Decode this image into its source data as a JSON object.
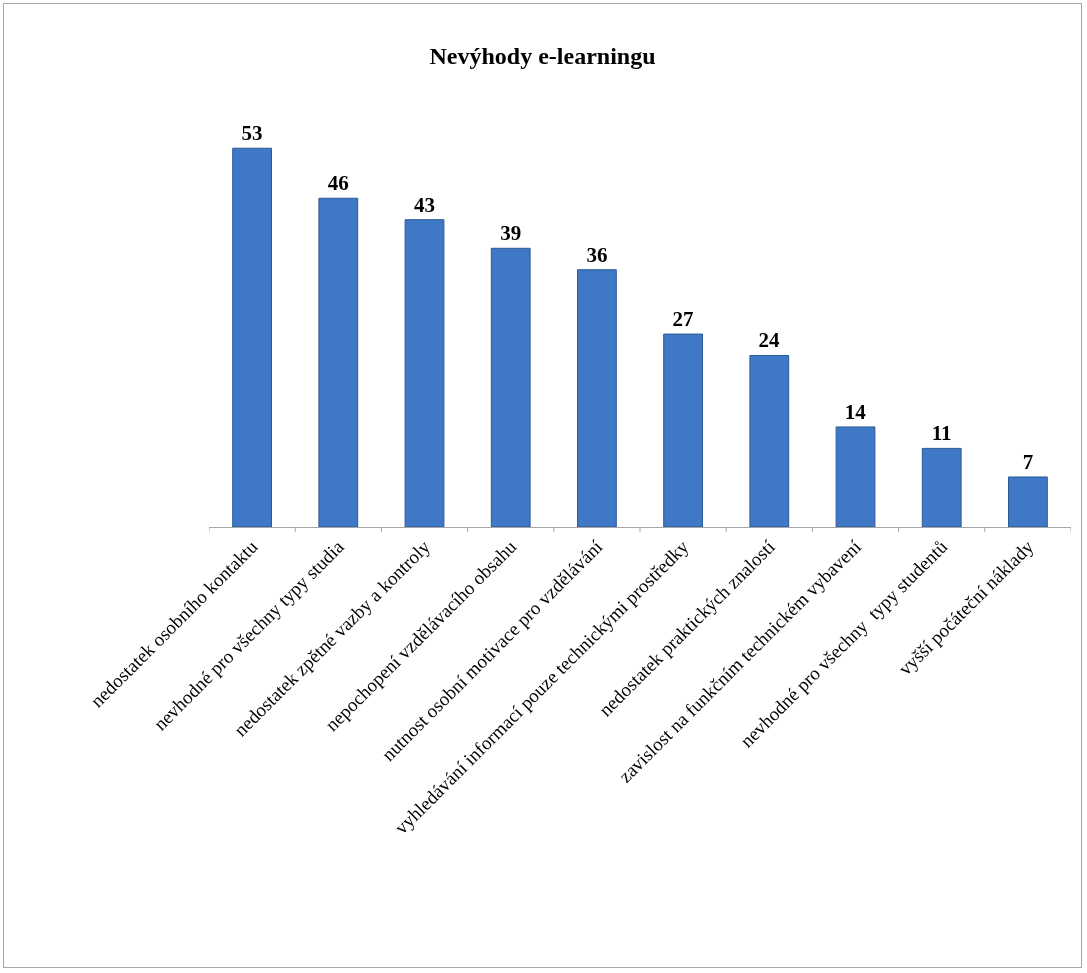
{
  "chart_data": {
    "type": "bar",
    "title": "Nevýhody e-learningu",
    "categories": [
      "nedostatek osobního kontaktu",
      "nevhodné pro všechny typy studia",
      "nedostatek zpětné vazby a kontroly",
      "nepochopení vzdělávacího obsahu",
      "nutnost osobní motivace pro vzdělávání",
      "vyhledávání informací pouze technickými prostředky",
      "nedostatek praktických znalostí",
      "zavislost na funkčním technickém vybavení",
      "nevhodné pro všechny  typy studentů",
      "vyšší počáteční náklady"
    ],
    "values": [
      53,
      46,
      43,
      39,
      36,
      27,
      24,
      14,
      11,
      7
    ],
    "color": "#3f78c6",
    "data_labels": true
  }
}
